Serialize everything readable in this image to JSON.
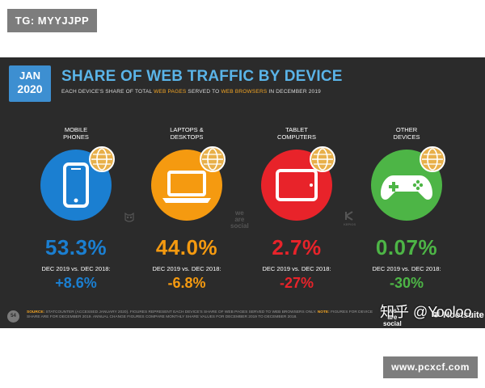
{
  "watermark_tag": "TG: MYYJJPP",
  "header": {
    "date_month": "JAN",
    "date_year": "2020",
    "title": "SHARE OF WEB TRAFFIC BY DEVICE",
    "subtitle_parts": [
      "EACH DEVICE'S SHARE OF TOTAL ",
      "WEB PAGES",
      " SERVED TO ",
      "WEB BROWSERS",
      " IN DECEMBER 2019"
    ]
  },
  "colors": {
    "mobile": "#1b7fd1",
    "laptops": "#f59a10",
    "tablet": "#e8232a",
    "other": "#4db546",
    "title": "#5ab4e8",
    "highlight": "#f5a623",
    "background": "#2b2b2b"
  },
  "chart_data": {
    "type": "table",
    "title": "SHARE OF WEB TRAFFIC BY DEVICE",
    "subtitle": "EACH DEVICE'S SHARE OF TOTAL WEB PAGES SERVED TO WEB BROWSERS IN DECEMBER 2019",
    "categories": [
      "MOBILE\nPHONES",
      "LAPTOPS &\nDESKTOPS",
      "TABLET\nCOMPUTERS",
      "OTHER\nDEVICES"
    ],
    "series": [
      {
        "values": [
          53.3,
          44.0,
          2.7,
          0.07
        ]
      },
      {
        "values": [
          8.6,
          -6.8,
          -27,
          -30
        ]
      }
    ]
  },
  "devices": [
    {
      "label": "MOBILE\nPHONES",
      "icon": "mobile-phone-icon",
      "share": "53.3%",
      "period": "DEC 2019 vs. DEC 2018:",
      "change": "+8.6%"
    },
    {
      "label": "LAPTOPS &\nDESKTOPS",
      "icon": "laptop-icon",
      "share": "44.0%",
      "period": "DEC 2019 vs. DEC 2018:",
      "change": "-6.8%"
    },
    {
      "label": "TABLET\nCOMPUTERS",
      "icon": "tablet-icon",
      "share": "2.7%",
      "period": "DEC 2019 vs. DEC 2018:",
      "change": "-27%"
    },
    {
      "label": "OTHER\nDEVICES",
      "icon": "gamepad-icon",
      "share": "0.07%",
      "period": "DEC 2019 vs. DEC 2018:",
      "change": "-30%"
    }
  ],
  "slide_watermarks": {
    "we_are_social": "we\nare\nsocial",
    "kepios": "KEPIOS"
  },
  "footer": {
    "page_number": "54",
    "source_label": "SOURCE:",
    "source_text": " STATCOUNTER (ACCESSED JANUARY 2020). FIGURES REPRESENT EACH DEVICE'S SHARE OF WEB PAGES SERVED TO WEB BROWSERS ONLY. ",
    "note_label": "NOTE:",
    "note_text": " FIGURES FOR DEVICE SHARE ARE FOR DECEMBER 2019. ANNUAL CHANGE FIGURES COMPARE MONTHLY SHARE VALUES FOR DECEMBER 2019 TO DECEMBER 2018.",
    "brand_we_are_social": "we\nare\nsocial",
    "brand_hootsuite": "Hootsuite"
  },
  "overlay_text": "知乎 @Yooloo",
  "url_badge": "www.pcxcf.com"
}
